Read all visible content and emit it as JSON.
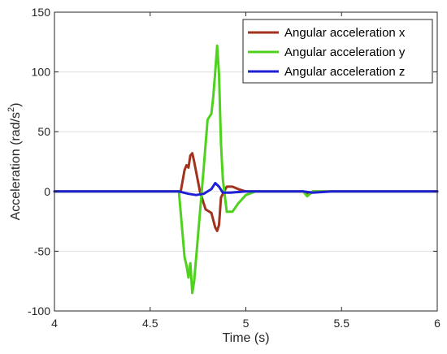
{
  "chart_data": {
    "type": "line",
    "title": "",
    "xlabel": "Time (s)",
    "ylabel": "Acceleration (rad/s",
    "ylabel_superscript": "2",
    "ylabel_suffix": ")",
    "xlim": [
      4,
      6
    ],
    "ylim": [
      -100,
      150
    ],
    "x_ticks": [
      4,
      4.5,
      5,
      5.5,
      6
    ],
    "x_tick_labels": [
      "4",
      "4.5",
      "5",
      "5.5",
      "6"
    ],
    "y_ticks": [
      -100,
      -50,
      0,
      50,
      100,
      150
    ],
    "y_tick_labels": [
      "-100",
      "-50",
      "0",
      "50",
      "100",
      "150"
    ],
    "grid": true,
    "legend_position": "top-right",
    "series": [
      {
        "name": "Angular acceleration x",
        "color": "#a0321e",
        "x": [
          4,
          4.6,
          4.66,
          4.68,
          4.69,
          4.7,
          4.71,
          4.72,
          4.73,
          4.76,
          4.79,
          4.82,
          4.84,
          4.85,
          4.86,
          4.87,
          4.9,
          4.93,
          4.96,
          5.0,
          5.05,
          5.3,
          5.33,
          5.35,
          6
        ],
        "y": [
          0,
          0,
          0,
          18,
          22,
          20,
          30,
          32,
          25,
          0,
          -15,
          -18,
          -30,
          -33,
          -28,
          -5,
          4,
          4,
          2,
          0,
          0,
          0,
          -2,
          0,
          0
        ]
      },
      {
        "name": "Angular acceleration y",
        "color": "#4fd21e",
        "x": [
          4,
          4.6,
          4.65,
          4.68,
          4.69,
          4.7,
          4.71,
          4.72,
          4.73,
          4.78,
          4.8,
          4.82,
          4.83,
          4.84,
          4.85,
          4.86,
          4.87,
          4.88,
          4.9,
          4.93,
          4.96,
          5.0,
          5.05,
          5.3,
          5.32,
          5.35,
          6
        ],
        "y": [
          0,
          0,
          0,
          -55,
          -62,
          -72,
          -60,
          -85,
          -75,
          20,
          60,
          65,
          80,
          100,
          122,
          98,
          40,
          10,
          -17,
          -17,
          -10,
          -3,
          0,
          0,
          -4,
          0,
          0
        ]
      },
      {
        "name": "Angular acceleration z",
        "color": "#1f1fd6",
        "x": [
          4,
          4.5,
          4.65,
          4.7,
          4.74,
          4.78,
          4.82,
          4.84,
          4.86,
          4.88,
          4.92,
          5.0,
          5.3,
          5.35,
          5.45,
          6
        ],
        "y": [
          0,
          0,
          0,
          -2,
          -3,
          -2,
          2,
          7,
          4,
          -1,
          -1,
          0,
          0,
          -1,
          0,
          0
        ]
      }
    ]
  }
}
